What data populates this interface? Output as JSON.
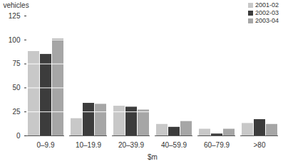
{
  "chart_data": {
    "type": "bar",
    "categories": [
      "0–9.9",
      "10–19.9",
      "20–39.9",
      "40–59.9",
      "60–79.9",
      ">80"
    ],
    "series": [
      {
        "name": "2001-02",
        "color": "#c8c8c8",
        "values": [
          88,
          18,
          31,
          12,
          7,
          13
        ]
      },
      {
        "name": "2002-03",
        "color": "#3c3c3c",
        "values": [
          85,
          34,
          30,
          9,
          2,
          17
        ]
      },
      {
        "name": "2003-04",
        "color": "#a6a6a6",
        "values": [
          101,
          33,
          27,
          15,
          7,
          12
        ]
      }
    ],
    "y_label": "vehicles",
    "x_label": "$m",
    "ylim": [
      0,
      125
    ],
    "yticks": [
      0,
      25,
      50,
      75,
      100,
      125
    ],
    "grid": true,
    "legend": "top-right"
  }
}
